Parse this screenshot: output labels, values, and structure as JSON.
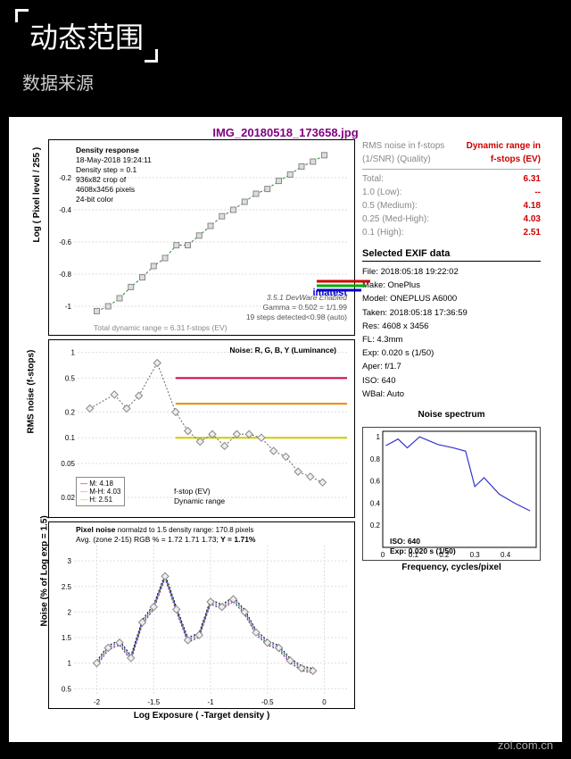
{
  "header": {
    "title": "动态范围",
    "subtitle": "数据来源"
  },
  "image_title": "IMG_20180518_173658.jpg",
  "chart1": {
    "type": "scatter-line",
    "title": "Density response",
    "ylabel": "Log ( Pixel level / 255 )",
    "info_lines": [
      "18-May-2018 19:24:11",
      "Density step = 0.1",
      "936x82 crop of",
      "4608x3456 pixels",
      "24-bit color"
    ],
    "right_lines": [
      "3.5.1 DevWare Enabled",
      "Gamma = 0.502 = 1/1.99",
      "19 steps detected<0.98 (auto)"
    ],
    "bottom_text": "Total dynamic range = 6.31 f-stops (EV)",
    "xlim": [
      -2.2,
      0.2
    ],
    "ylim": [
      -1.1,
      0
    ],
    "yticks": [
      -1,
      -0.8,
      -0.6,
      -0.4,
      -0.2
    ],
    "x_data": [
      -2.0,
      -1.9,
      -1.8,
      -1.7,
      -1.6,
      -1.5,
      -1.4,
      -1.3,
      -1.2,
      -1.1,
      -1.0,
      -0.9,
      -0.8,
      -0.7,
      -0.6,
      -0.5,
      -0.4,
      -0.3,
      -0.2,
      -0.1,
      0.0
    ],
    "y_data": [
      -1.03,
      -1.0,
      -0.95,
      -0.88,
      -0.82,
      -0.75,
      -0.7,
      -0.62,
      -0.62,
      -0.56,
      -0.5,
      -0.44,
      -0.4,
      -0.35,
      -0.3,
      -0.27,
      -0.22,
      -0.18,
      -0.13,
      -0.1,
      -0.06
    ],
    "line_color": "#2a8a2a",
    "marker_color": "#888",
    "marker_fill": "#ddd",
    "logo_text": "imatest"
  },
  "chart2": {
    "type": "line",
    "title": "Noise: R, G, B, Y (Luminance)",
    "ylabel": "RMS noise (f-stops)",
    "sub_xlabel": [
      "f-stop (EV)",
      "Dynamic range"
    ],
    "ylim": [
      0.015,
      1.2
    ],
    "yscale": "log",
    "yticks": [
      0.02,
      0.05,
      0.1,
      0.2,
      0.5,
      1
    ],
    "x_data": [
      -2.0,
      -1.8,
      -1.7,
      -1.6,
      -1.45,
      -1.3,
      -1.2,
      -1.1,
      -1.0,
      -0.9,
      -0.8,
      -0.7,
      -0.6,
      -0.5,
      -0.4,
      -0.3,
      -0.2,
      -0.1
    ],
    "y_data": [
      0.22,
      0.32,
      0.22,
      0.31,
      0.75,
      0.2,
      0.12,
      0.09,
      0.11,
      0.08,
      0.11,
      0.11,
      0.1,
      0.07,
      0.06,
      0.04,
      0.035,
      0.03
    ],
    "line_color": "#666",
    "marker_color": "#888",
    "hlines": [
      {
        "y": 0.5,
        "color": "#c04",
        "label": "M:",
        "val": "4.18"
      },
      {
        "y": 0.25,
        "color": "#e80",
        "label": "M-H:",
        "val": "4.03"
      },
      {
        "y": 0.1,
        "color": "#cc0",
        "label": "H:",
        "val": "2.51"
      }
    ]
  },
  "chart3": {
    "type": "line",
    "title": "Pixel noise",
    "title_extra": "normalzd to 1.5 density range: 170.8 pixels",
    "sub_line": "Avg. (zone 2-15) RGB % = 1.72  1.71  1.73;",
    "y_bold": "Y = 1.71%",
    "ylabel": "Noise (% of Log exp = 1.5)",
    "xlabel": "Log Exposure ( -Target density )",
    "xlim": [
      -2.2,
      0.2
    ],
    "ylim": [
      0.4,
      3.3
    ],
    "xticks": [
      -2,
      -1.5,
      -1,
      -0.5,
      0
    ],
    "yticks": [
      0.5,
      1,
      1.5,
      2,
      2.5,
      3
    ],
    "x_data": [
      -2.0,
      -1.9,
      -1.8,
      -1.7,
      -1.6,
      -1.5,
      -1.4,
      -1.3,
      -1.2,
      -1.1,
      -1.0,
      -0.9,
      -0.8,
      -0.7,
      -0.6,
      -0.5,
      -0.4,
      -0.3,
      -0.2,
      -0.1
    ],
    "y_data": [
      1.0,
      1.3,
      1.4,
      1.1,
      1.8,
      2.1,
      2.7,
      2.05,
      1.45,
      1.55,
      2.2,
      2.1,
      2.25,
      2.0,
      1.6,
      1.4,
      1.3,
      1.05,
      0.9,
      0.85
    ],
    "series_colors": [
      "#800080",
      "#228b22",
      "#4444ff",
      "#000"
    ],
    "marker_color": "#888"
  },
  "dynamic_range": {
    "header1": "RMS noise in f-stops (1/SNR) (Quality)",
    "header2": "Dynamic range in f-stops (EV)",
    "rows": [
      {
        "label": "Total:",
        "val": "6.31"
      },
      {
        "label": "1.0  (Low):",
        "val": "--"
      },
      {
        "label": "0.5  (Medium):",
        "val": "4.18"
      },
      {
        "label": "0.25 (Med-High):",
        "val": "4.03"
      },
      {
        "label": "0.1  (High):",
        "val": "2.51"
      }
    ]
  },
  "exif": {
    "title": "Selected EXIF data",
    "rows": [
      "File:  2018:05:18 19:22:02",
      "Make:  OnePlus",
      "Model: ONEPLUS A6000",
      "Taken: 2018:05:18 17:36:59",
      "Res:   4608 x 3456",
      "FL:   4.3mm",
      "Exp:   0.020 s  (1/50)",
      "Aper:  f/1.7",
      "ISO:   640",
      "WBal: Auto"
    ]
  },
  "spectrum": {
    "title": "Noise spectrum",
    "xlabel": "Frequency, cycles/pixel",
    "xlim": [
      0,
      0.5
    ],
    "ylim": [
      0,
      1.05
    ],
    "xticks": [
      0,
      0.1,
      0.2,
      0.3,
      0.4
    ],
    "yticks": [
      0.2,
      0.4,
      0.6,
      0.8,
      1
    ],
    "x_data": [
      0.01,
      0.05,
      0.08,
      0.12,
      0.18,
      0.23,
      0.27,
      0.3,
      0.33,
      0.38,
      0.43,
      0.48
    ],
    "y_data": [
      0.92,
      0.98,
      0.9,
      1.0,
      0.93,
      0.9,
      0.87,
      0.55,
      0.63,
      0.48,
      0.4,
      0.33
    ],
    "line_color": "#3333cc",
    "info": [
      "ISO:   640",
      "Exp:   0.020 s  (1/50)"
    ]
  },
  "footer": "zol.com.cn"
}
